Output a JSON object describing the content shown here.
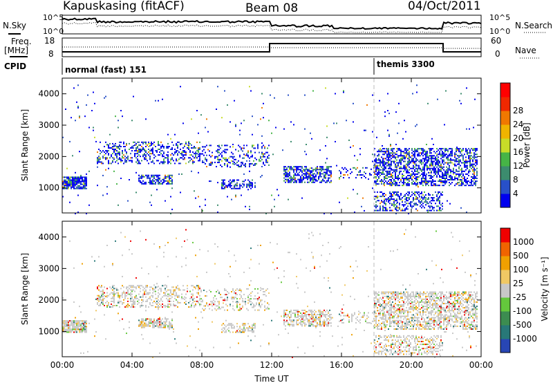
{
  "header": {
    "station": "Kapuskasing (fitACF)",
    "beam": "Beam 08",
    "date": "04/Oct/2011"
  },
  "sidebar_labels": {
    "nsky": "N.Sky",
    "freq": "Freq.",
    "freq_unit": "[MHz]",
    "cpid": "CPID",
    "nsearch": "N.Search",
    "nave": "Nave"
  },
  "strip_ticks": {
    "noise_left_top": "10^5",
    "noise_left_bottom": "10^0",
    "noise_right_top": "10^5",
    "noise_right_bottom": "10^0",
    "freq_left_top": "18",
    "freq_left_bottom": "8",
    "nave_right_top": "60",
    "nave_right_bottom": "0"
  },
  "cpid_segments": [
    "normal (fast) 151",
    "themis 3300"
  ],
  "chart_data": [
    {
      "type": "heatmap",
      "name": "power",
      "ylabel": "Slant Range [km]",
      "ylim": [
        200,
        4500
      ],
      "yticks": [
        "1000",
        "2000",
        "3000",
        "4000"
      ],
      "xticks": [
        "00:00",
        "04:00",
        "08:00",
        "12:00",
        "16:00",
        "20:00",
        "00:00"
      ],
      "colorbar": {
        "label": "Power [dB]",
        "ticks": [
          "4",
          "8",
          "12",
          "16",
          "20",
          "24",
          "28"
        ],
        "colors": [
          "#0000ee",
          "#2850c8",
          "#3c8c6e",
          "#46b446",
          "#c8dc28",
          "#f0b400",
          "#f07800",
          "#f02800",
          "#ff0000"
        ]
      }
    },
    {
      "type": "heatmap",
      "name": "velocity",
      "ylabel": "Slant Range [km]",
      "ylim": [
        200,
        4500
      ],
      "yticks": [
        "1000",
        "2000",
        "3000",
        "4000"
      ],
      "xticks": [
        "00:00",
        "04:00",
        "08:00",
        "12:00",
        "16:00",
        "20:00",
        "00:00"
      ],
      "xlabel": "Time UT",
      "colorbar": {
        "label": "Velocity [m s⁻¹]",
        "ticks": [
          "1000",
          "500",
          "100",
          "25",
          "-25",
          "-100",
          "-500",
          "-1000"
        ],
        "colors": [
          "#2846b4",
          "#287878",
          "#3c8c50",
          "#64c83c",
          "#c8c8c8",
          "#f0c864",
          "#f0a000",
          "#f06400",
          "#f00000"
        ]
      }
    }
  ]
}
